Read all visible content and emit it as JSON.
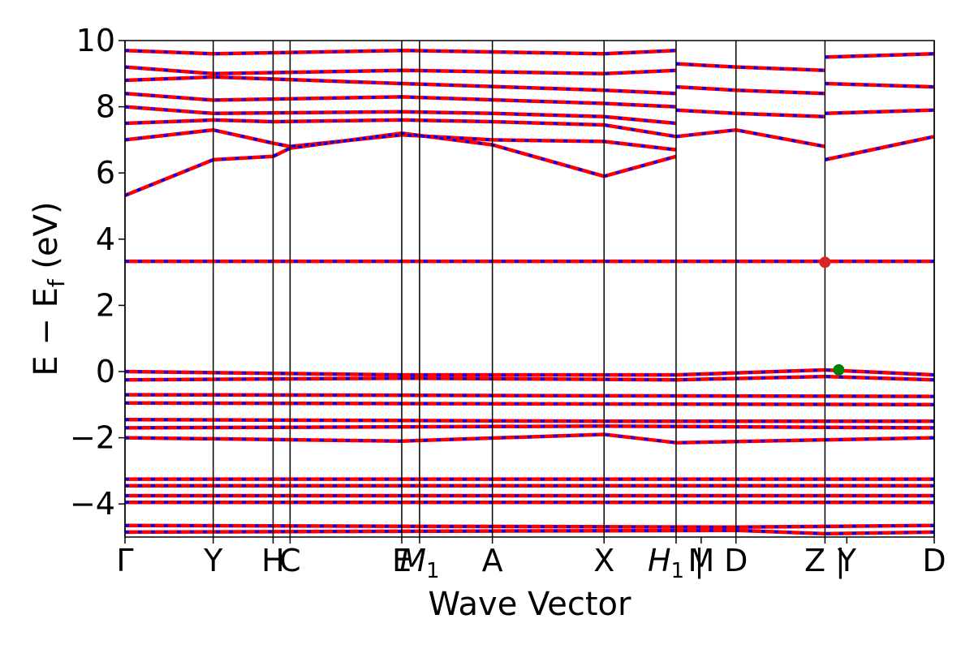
{
  "chart_data": {
    "type": "line",
    "xlabel": "Wave Vector",
    "ylabel": "E − E_f (eV)",
    "ylim": [
      -5,
      10
    ],
    "y_ticks": [
      -4,
      -2,
      0,
      2,
      4,
      6,
      8,
      10
    ],
    "x_range": [
      0,
      1
    ],
    "kpath": [
      {
        "label": "Γ",
        "x": 0.0
      },
      {
        "label": "Y",
        "x": 0.109
      },
      {
        "label": "H",
        "x": 0.183
      },
      {
        "label": "C",
        "x": 0.204
      },
      {
        "label": "E",
        "x": 0.342
      },
      {
        "label": "M_1",
        "x": 0.364
      },
      {
        "label": "A",
        "x": 0.454
      },
      {
        "label": "X",
        "x": 0.592
      },
      {
        "label": "H_1 |",
        "x": 0.681
      },
      {
        "label": "M",
        "x": 0.712
      },
      {
        "label": "D",
        "x": 0.755
      },
      {
        "label": "Z |",
        "x": 0.865
      },
      {
        "label": "Y",
        "x": 0.892
      },
      {
        "label": "D",
        "x": 1.0
      }
    ],
    "vlines": [
      0.0,
      0.109,
      0.183,
      0.204,
      0.342,
      0.364,
      0.454,
      0.592,
      0.681,
      0.755,
      0.865,
      1.0
    ],
    "series": [
      {
        "role": "spin-up",
        "color": "#0000ff",
        "bands": [
          {
            "x": [
              0.0,
              0.109,
              0.183,
              0.204,
              0.342,
              0.454,
              0.592,
              0.681
            ],
            "y": [
              5.32,
              6.4,
              6.5,
              6.75,
              7.2,
              6.85,
              5.9,
              6.5
            ]
          },
          {
            "x": [
              0.0,
              0.109,
              0.183,
              0.204,
              0.342,
              0.454,
              0.592,
              0.681
            ],
            "y": [
              7.0,
              7.3,
              6.9,
              6.8,
              7.15,
              7.0,
              6.95,
              6.7
            ]
          },
          {
            "x": [
              0.0,
              0.109,
              0.183,
              0.342,
              0.454,
              0.592,
              0.681
            ],
            "y": [
              7.5,
              7.6,
              7.55,
              7.6,
              7.55,
              7.45,
              7.1
            ]
          },
          {
            "x": [
              0.0,
              0.109,
              0.342,
              0.454,
              0.592,
              0.681
            ],
            "y": [
              8.0,
              7.8,
              7.85,
              7.8,
              7.7,
              7.5
            ]
          },
          {
            "x": [
              0.0,
              0.109,
              0.342,
              0.592,
              0.681
            ],
            "y": [
              8.4,
              8.2,
              8.3,
              8.1,
              8.0
            ]
          },
          {
            "x": [
              0.0,
              0.109,
              0.342,
              0.592,
              0.681
            ],
            "y": [
              8.8,
              8.9,
              8.7,
              8.5,
              8.4
            ]
          },
          {
            "x": [
              0.0,
              0.109,
              0.342,
              0.592,
              0.681
            ],
            "y": [
              9.2,
              9.0,
              9.1,
              9.0,
              9.1
            ]
          },
          {
            "x": [
              0.0,
              0.109,
              0.342,
              0.592,
              0.681
            ],
            "y": [
              9.7,
              9.6,
              9.7,
              9.6,
              9.7
            ]
          },
          {
            "x": [
              0.681,
              0.755,
              0.865
            ],
            "y": [
              7.1,
              7.3,
              6.8
            ]
          },
          {
            "x": [
              0.681,
              0.755,
              0.865
            ],
            "y": [
              7.9,
              7.8,
              7.7
            ]
          },
          {
            "x": [
              0.681,
              0.755,
              0.865
            ],
            "y": [
              8.6,
              8.5,
              8.4
            ]
          },
          {
            "x": [
              0.681,
              0.755,
              0.865
            ],
            "y": [
              9.3,
              9.2,
              9.1
            ]
          },
          {
            "x": [
              0.865,
              1.0
            ],
            "y": [
              6.4,
              7.1
            ]
          },
          {
            "x": [
              0.865,
              1.0
            ],
            "y": [
              7.8,
              7.9
            ]
          },
          {
            "x": [
              0.865,
              1.0
            ],
            "y": [
              8.7,
              8.6
            ]
          },
          {
            "x": [
              0.865,
              1.0
            ],
            "y": [
              9.5,
              9.6
            ]
          },
          {
            "x": [
              0.0,
              1.0
            ],
            "y": [
              3.33,
              3.33
            ]
          },
          {
            "x": [
              0.0,
              0.342,
              0.681,
              0.865,
              1.0
            ],
            "y": [
              0.0,
              -0.1,
              -0.1,
              0.05,
              -0.1
            ]
          },
          {
            "x": [
              0.0,
              0.342,
              0.681,
              0.865,
              1.0
            ],
            "y": [
              -0.25,
              -0.2,
              -0.25,
              -0.15,
              -0.25
            ]
          },
          {
            "x": [
              0.0,
              1.0
            ],
            "y": [
              -0.7,
              -0.75
            ]
          },
          {
            "x": [
              0.0,
              1.0
            ],
            "y": [
              -0.95,
              -1.0
            ]
          },
          {
            "x": [
              0.0,
              0.592,
              1.0
            ],
            "y": [
              -1.45,
              -1.5,
              -1.5
            ]
          },
          {
            "x": [
              0.0,
              0.592,
              1.0
            ],
            "y": [
              -1.7,
              -1.65,
              -1.7
            ]
          },
          {
            "x": [
              0.0,
              0.342,
              0.592,
              0.681,
              1.0
            ],
            "y": [
              -2.0,
              -2.1,
              -1.9,
              -2.15,
              -2.0
            ]
          },
          {
            "x": [
              0.0,
              1.0
            ],
            "y": [
              -3.25,
              -3.25
            ]
          },
          {
            "x": [
              0.0,
              1.0
            ],
            "y": [
              -3.45,
              -3.45
            ]
          },
          {
            "x": [
              0.0,
              1.0
            ],
            "y": [
              -3.75,
              -3.75
            ]
          },
          {
            "x": [
              0.0,
              1.0
            ],
            "y": [
              -3.95,
              -3.95
            ]
          },
          {
            "x": [
              0.0,
              0.755,
              1.0
            ],
            "y": [
              -4.65,
              -4.7,
              -4.65
            ]
          },
          {
            "x": [
              0.0,
              0.755,
              0.865,
              1.0
            ],
            "y": [
              -4.85,
              -4.8,
              -4.9,
              -4.85
            ]
          }
        ]
      },
      {
        "role": "spin-down",
        "color": "#ff0000",
        "bands": [
          {
            "x": [
              0.0,
              0.109,
              0.183,
              0.204,
              0.342,
              0.454,
              0.592,
              0.681
            ],
            "y": [
              5.32,
              6.4,
              6.5,
              6.75,
              7.2,
              6.85,
              5.9,
              6.5
            ]
          },
          {
            "x": [
              0.0,
              0.109,
              0.183,
              0.204,
              0.342,
              0.454,
              0.592,
              0.681
            ],
            "y": [
              7.0,
              7.3,
              6.9,
              6.8,
              7.15,
              7.0,
              6.95,
              6.7
            ]
          },
          {
            "x": [
              0.0,
              0.109,
              0.183,
              0.342,
              0.454,
              0.592,
              0.681
            ],
            "y": [
              7.5,
              7.6,
              7.55,
              7.6,
              7.55,
              7.45,
              7.1
            ]
          },
          {
            "x": [
              0.0,
              0.109,
              0.342,
              0.454,
              0.592,
              0.681
            ],
            "y": [
              8.0,
              7.8,
              7.85,
              7.8,
              7.7,
              7.5
            ]
          },
          {
            "x": [
              0.0,
              0.109,
              0.342,
              0.592,
              0.681
            ],
            "y": [
              8.4,
              8.2,
              8.3,
              8.1,
              8.0
            ]
          },
          {
            "x": [
              0.0,
              0.109,
              0.342,
              0.592,
              0.681
            ],
            "y": [
              8.8,
              8.9,
              8.7,
              8.5,
              8.4
            ]
          },
          {
            "x": [
              0.0,
              0.109,
              0.342,
              0.592,
              0.681
            ],
            "y": [
              9.2,
              9.0,
              9.1,
              9.0,
              9.1
            ]
          },
          {
            "x": [
              0.0,
              0.109,
              0.342,
              0.592,
              0.681
            ],
            "y": [
              9.7,
              9.6,
              9.7,
              9.6,
              9.7
            ]
          },
          {
            "x": [
              0.681,
              0.755,
              0.865
            ],
            "y": [
              7.1,
              7.3,
              6.8
            ]
          },
          {
            "x": [
              0.681,
              0.755,
              0.865
            ],
            "y": [
              7.9,
              7.8,
              7.7
            ]
          },
          {
            "x": [
              0.681,
              0.755,
              0.865
            ],
            "y": [
              8.6,
              8.5,
              8.4
            ]
          },
          {
            "x": [
              0.681,
              0.755,
              0.865
            ],
            "y": [
              9.3,
              9.2,
              9.1
            ]
          },
          {
            "x": [
              0.865,
              1.0
            ],
            "y": [
              6.4,
              7.1
            ]
          },
          {
            "x": [
              0.865,
              1.0
            ],
            "y": [
              7.8,
              7.9
            ]
          },
          {
            "x": [
              0.865,
              1.0
            ],
            "y": [
              8.7,
              8.6
            ]
          },
          {
            "x": [
              0.865,
              1.0
            ],
            "y": [
              9.5,
              9.6
            ]
          },
          {
            "x": [
              0.0,
              1.0
            ],
            "y": [
              3.33,
              3.33
            ]
          },
          {
            "x": [
              0.0,
              0.342,
              0.681,
              0.865,
              1.0
            ],
            "y": [
              0.0,
              -0.1,
              -0.1,
              0.05,
              -0.1
            ]
          },
          {
            "x": [
              0.0,
              0.342,
              0.681,
              0.865,
              1.0
            ],
            "y": [
              -0.25,
              -0.2,
              -0.25,
              -0.15,
              -0.25
            ]
          },
          {
            "x": [
              0.0,
              1.0
            ],
            "y": [
              -0.7,
              -0.75
            ]
          },
          {
            "x": [
              0.0,
              1.0
            ],
            "y": [
              -0.95,
              -1.0
            ]
          },
          {
            "x": [
              0.0,
              0.592,
              1.0
            ],
            "y": [
              -1.45,
              -1.5,
              -1.5
            ]
          },
          {
            "x": [
              0.0,
              0.592,
              1.0
            ],
            "y": [
              -1.7,
              -1.65,
              -1.7
            ]
          },
          {
            "x": [
              0.0,
              0.342,
              0.592,
              0.681,
              1.0
            ],
            "y": [
              -2.0,
              -2.1,
              -1.9,
              -2.15,
              -2.0
            ]
          },
          {
            "x": [
              0.0,
              1.0
            ],
            "y": [
              -3.25,
              -3.25
            ]
          },
          {
            "x": [
              0.0,
              1.0
            ],
            "y": [
              -3.45,
              -3.45
            ]
          },
          {
            "x": [
              0.0,
              1.0
            ],
            "y": [
              -3.75,
              -3.75
            ]
          },
          {
            "x": [
              0.0,
              1.0
            ],
            "y": [
              -3.95,
              -3.95
            ]
          },
          {
            "x": [
              0.0,
              0.755,
              1.0
            ],
            "y": [
              -4.65,
              -4.7,
              -4.65
            ]
          },
          {
            "x": [
              0.0,
              0.755,
              0.865,
              1.0
            ],
            "y": [
              -4.85,
              -4.8,
              -4.9,
              -4.85
            ]
          }
        ]
      }
    ],
    "markers": [
      {
        "role": "conduction-band-minimum",
        "x": 0.865,
        "y": 3.3,
        "color": "#d62728"
      },
      {
        "role": "valence-band-maximum",
        "x": 0.882,
        "y": 0.05,
        "color": "#008000"
      }
    ]
  }
}
